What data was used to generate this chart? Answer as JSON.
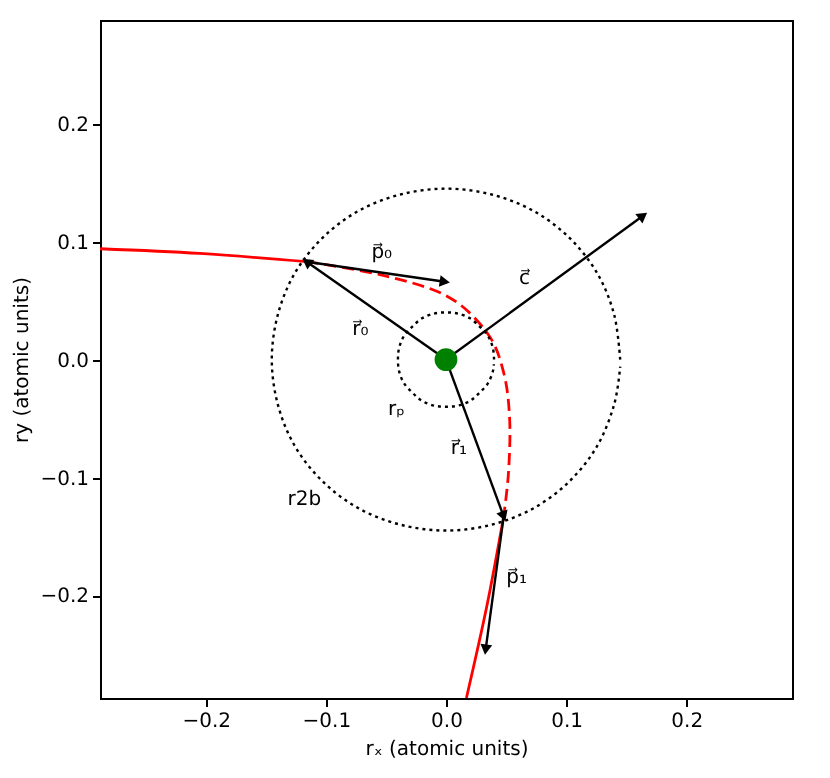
{
  "chart_data": {
    "type": "line",
    "xlabel": "rₓ (atomic units)",
    "ylabel": "ry (atomic units)",
    "xlim": [
      -0.288,
      0.288
    ],
    "ylim": [
      -0.287,
      0.288
    ],
    "xticks": [
      {
        "value": -0.2,
        "label": "−0.2"
      },
      {
        "value": -0.1,
        "label": "−0.1"
      },
      {
        "value": 0,
        "label": "0.0"
      },
      0.1,
      0.2
    ],
    "yticks": [
      {
        "value": -0.2,
        "label": "−0.2"
      },
      {
        "value": -0.1,
        "label": "−0.1"
      },
      {
        "value": 0,
        "label": "0.0"
      },
      0.1,
      0.2
    ],
    "grid": false,
    "series": [
      {
        "color": "#ff0000",
        "line_style": "solid",
        "x": [
          -0.288,
          -0.205,
          -0.116
        ],
        "values": [
          0.094,
          0.09,
          0.083
        ]
      },
      {
        "color": "#ff0000",
        "line_style": "dashed",
        "x": [
          -0.116,
          -0.055,
          0.0005,
          0.034,
          0.048,
          0.053,
          0.052,
          0.048
        ],
        "values": [
          0.083,
          0.072,
          0.054,
          0.023,
          -0.011,
          -0.051,
          -0.096,
          -0.133
        ]
      },
      {
        "color": "#ff0000",
        "line_style": "solid",
        "x": [
          0.048,
          0.034,
          0.017
        ],
        "values": [
          -0.133,
          -0.209,
          -0.287
        ]
      },
      {
        "color": "#000000",
        "line_style": "dotted",
        "x": [
          0.145,
          0.14,
          0.126,
          0.103,
          0.073,
          0.038,
          0,
          -0.038,
          -0.073,
          -0.103,
          -0.126,
          -0.14,
          -0.145,
          -0.14,
          -0.126,
          -0.103,
          -0.073,
          -0.038,
          0,
          0.038,
          0.073,
          0.103,
          0.126,
          0.14,
          0.145
        ],
        "values": [
          0,
          0.038,
          0.073,
          0.103,
          0.126,
          0.14,
          0.145,
          0.14,
          0.126,
          0.103,
          0.073,
          0.038,
          0,
          -0.038,
          -0.073,
          -0.103,
          -0.126,
          -0.14,
          -0.145,
          -0.14,
          -0.126,
          -0.103,
          -0.073,
          -0.038,
          -0.006
        ]
      },
      {
        "color": "#000000",
        "line_style": "dotted",
        "x": [
          0.04,
          0.039,
          0.035,
          0.028,
          0.02,
          0.01,
          0,
          -0.01,
          -0.02,
          -0.028,
          -0.035,
          -0.039,
          -0.04,
          -0.039,
          -0.035,
          -0.028,
          -0.02,
          -0.01,
          0,
          0.01,
          0.02,
          0.028,
          0.035,
          0.039,
          0.0398
        ],
        "values": [
          0,
          0.01,
          0.02,
          0.028,
          0.035,
          0.039,
          0.04,
          0.039,
          0.035,
          0.028,
          0.02,
          0.01,
          0,
          -0.01,
          -0.02,
          -0.028,
          -0.035,
          -0.039,
          -0.04,
          -0.039,
          -0.035,
          -0.028,
          -0.02,
          -0.01,
          -0.004
        ]
      },
      {
        "color": "#000000",
        "line_style": "solid",
        "marker": "triangle",
        "x": [
          0,
          -0.116
        ],
        "values": [
          0,
          0.083
        ]
      },
      {
        "color": "#000000",
        "line_style": "solid",
        "marker": "triangle",
        "x": [
          -0.116,
          -0.001
        ],
        "values": [
          0.083,
          0.066
        ]
      },
      {
        "color": "#000000",
        "line_style": "solid",
        "marker": "triangle",
        "x": [
          0,
          0.164
        ],
        "values": [
          0,
          0.122
        ]
      },
      {
        "color": "#000000",
        "line_style": "solid",
        "marker": "triangle",
        "x": [
          0,
          0.048
        ],
        "values": [
          0,
          -0.133
        ]
      },
      {
        "color": "#000000",
        "line_style": "solid",
        "marker": "triangle",
        "x": [
          0.048,
          0.033
        ],
        "values": [
          -0.133,
          -0.246
        ]
      },
      {
        "type": "scatter",
        "color": "#008000",
        "marker": "circle",
        "x": [
          0
        ],
        "values": [
          0
        ]
      }
    ],
    "annotations": [
      {
        "text": "p⃗₀",
        "x": -0.0585,
        "y": 0.0745
      },
      {
        "text": "c⃗",
        "x": 0.082,
        "y": 0.061
      },
      {
        "text": "r⃗₀",
        "x": -0.058,
        "y": 0.0415
      },
      {
        "text": "rₚ",
        "x": -0.028,
        "y": -0.028
      },
      {
        "text": "r⃗₁",
        "x": 0.024,
        "y": -0.0665
      },
      {
        "text": "r2b",
        "x": -0.103,
        "y": -0.103
      },
      {
        "text": "p⃗₁",
        "x": 0.0405,
        "y": -0.1895
      }
    ]
  }
}
